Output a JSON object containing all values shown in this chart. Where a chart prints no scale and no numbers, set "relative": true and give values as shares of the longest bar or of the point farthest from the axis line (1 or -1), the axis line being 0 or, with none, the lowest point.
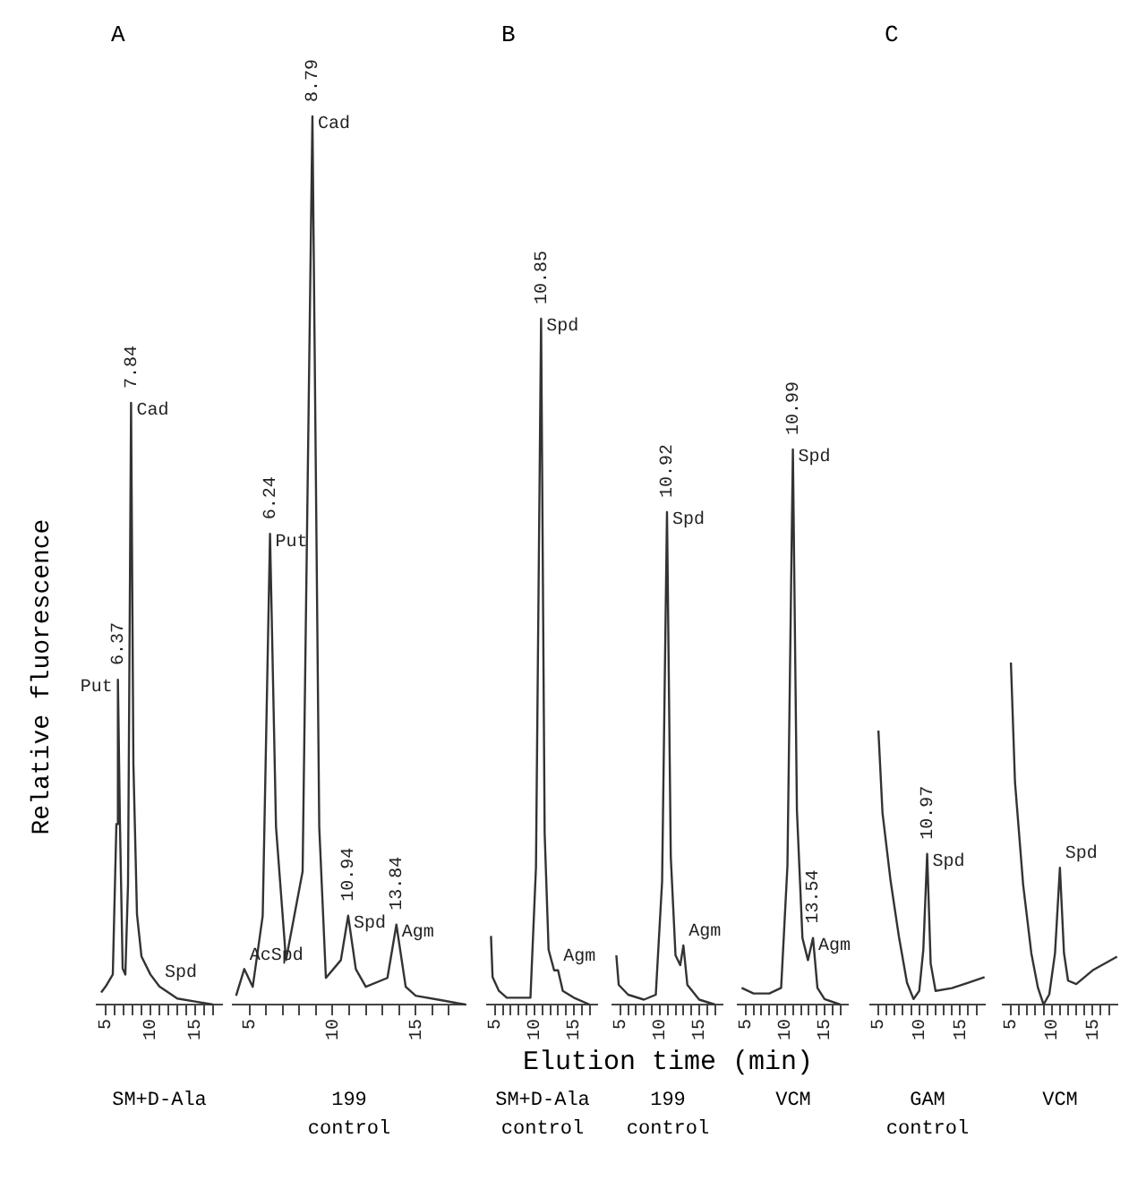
{
  "chart_data": [
    {
      "type": "line",
      "title": "A",
      "ylabel": "Relative fluorescence",
      "relative": true,
      "color": "#333333",
      "marker": "none",
      "xlim": [
        4,
        18
      ],
      "xticks": [
        5,
        {
          "value": 6,
          "label": null
        },
        {
          "value": 7,
          "label": null
        },
        {
          "value": 8,
          "label": null
        },
        {
          "value": 9,
          "label": null
        },
        10,
        {
          "value": 11,
          "label": null
        },
        {
          "value": 12,
          "label": null
        },
        {
          "value": 13,
          "label": null
        },
        {
          "value": 14,
          "label": null
        },
        15,
        {
          "value": 16,
          "label": null
        },
        {
          "value": 17,
          "label": null
        }
      ],
      "x": [
        4.5,
        5,
        5.8,
        6.2,
        6.37,
        6.6,
        6.9,
        7.2,
        7.5,
        7.84,
        8.1,
        8.5,
        9,
        10,
        11,
        13,
        15,
        17
      ],
      "values": [
        0.02,
        0.03,
        0.05,
        0.3,
        0.54,
        0.3,
        0.06,
        0.05,
        0.2,
        1,
        0.4,
        0.15,
        0.08,
        0.05,
        0.03,
        0.01,
        0.005,
        0
      ],
      "annotations": [
        {
          "text": "6.37",
          "x": 6.37,
          "y": 0.54
        },
        {
          "text": "Put",
          "x": 6.37,
          "y": 0.54
        },
        {
          "text": "7.84",
          "x": 7.84,
          "y": 1
        },
        {
          "text": "Cad",
          "x": 7.84,
          "y": 1
        },
        {
          "text": "Spd",
          "x": 11,
          "y": 0.03
        },
        "SM+D-Ala"
      ]
    },
    {
      "type": "line",
      "relative": true,
      "color": "#333333",
      "marker": "none",
      "xlim": [
        4,
        18
      ],
      "xticks": [
        5,
        {
          "value": 6,
          "label": null
        },
        {
          "value": 7,
          "label": null
        },
        {
          "value": 8,
          "label": null
        },
        {
          "value": 9,
          "label": null
        },
        10,
        {
          "value": 11,
          "label": null
        },
        {
          "value": 12,
          "label": null
        },
        {
          "value": 13,
          "label": null
        },
        {
          "value": 14,
          "label": null
        },
        15,
        {
          "value": 16,
          "label": null
        },
        {
          "value": 17,
          "label": null
        }
      ],
      "x": [
        4.2,
        4.69,
        5.2,
        5.8,
        6.24,
        6.6,
        7.2,
        8.2,
        8.79,
        9.2,
        9.6,
        10.5,
        10.94,
        11.4,
        12,
        13.3,
        13.84,
        14.4,
        15,
        16.5,
        18
      ],
      "values": [
        0.01,
        0.04,
        0.02,
        0.1,
        0.53,
        0.2,
        0.05,
        0.15,
        1,
        0.2,
        0.03,
        0.05,
        0.1,
        0.04,
        0.02,
        0.03,
        0.09,
        0.02,
        0.01,
        0.005,
        0
      ],
      "annotations": [
        {
          "text": "AcSpd",
          "x": 4.69,
          "y": 0.04
        },
        {
          "text": "6.24",
          "x": 6.24,
          "y": 0.53
        },
        {
          "text": "Put",
          "x": 6.24,
          "y": 0.53
        },
        {
          "text": "8.79",
          "x": 8.79,
          "y": 1
        },
        {
          "text": "Cad",
          "x": 8.79,
          "y": 1
        },
        {
          "text": "10.94",
          "x": 10.94,
          "y": 0.1
        },
        {
          "text": "Spd",
          "x": 10.94,
          "y": 0.1
        },
        {
          "text": "13.84",
          "x": 13.84,
          "y": 0.09
        },
        {
          "text": "Agm",
          "x": 13.84,
          "y": 0.09
        },
        "199",
        "control"
      ]
    },
    {
      "type": "line",
      "title": "B",
      "relative": true,
      "color": "#333333",
      "marker": "none",
      "xlim": [
        4,
        18
      ],
      "xticks": [
        5,
        {
          "value": 6,
          "label": null
        },
        {
          "value": 7,
          "label": null
        },
        {
          "value": 8,
          "label": null
        },
        {
          "value": 9,
          "label": null
        },
        10,
        {
          "value": 11,
          "label": null
        },
        {
          "value": 12,
          "label": null
        },
        {
          "value": 13,
          "label": null
        },
        {
          "value": 14,
          "label": null
        },
        15,
        {
          "value": 16,
          "label": null
        },
        {
          "value": 17,
          "label": null
        }
      ],
      "x": [
        4.5,
        4.7,
        5.5,
        6.5,
        8,
        9.5,
        10.2,
        10.85,
        11.3,
        11.8,
        12.5,
        13,
        13.6,
        15,
        17
      ],
      "values": [
        0.1,
        0.04,
        0.02,
        0.01,
        0.01,
        0.01,
        0.2,
        1,
        0.25,
        0.08,
        0.05,
        0.05,
        0.02,
        0.01,
        0
      ],
      "annotations": [
        {
          "text": "10.85",
          "x": 10.85,
          "y": 1
        },
        {
          "text": "Spd",
          "x": 10.85,
          "y": 1
        },
        {
          "text": "Agm",
          "x": 13,
          "y": 0.05
        },
        "SM+D-Ala",
        "control"
      ]
    },
    {
      "type": "line",
      "xlabel": "Elution time (min)",
      "relative": true,
      "color": "#333333",
      "marker": "none",
      "xlim": [
        4,
        18
      ],
      "xticks": [
        5,
        {
          "value": 6,
          "label": null
        },
        {
          "value": 7,
          "label": null
        },
        {
          "value": 8,
          "label": null
        },
        {
          "value": 9,
          "label": null
        },
        10,
        {
          "value": 11,
          "label": null
        },
        {
          "value": 12,
          "label": null
        },
        {
          "value": 13,
          "label": null
        },
        {
          "value": 14,
          "label": null
        },
        15,
        {
          "value": 16,
          "label": null
        },
        {
          "value": 17,
          "label": null
        }
      ],
      "x": [
        4.5,
        4.8,
        6,
        8,
        9.5,
        10.3,
        10.92,
        11.4,
        12,
        12.6,
        13,
        13.5,
        15,
        17
      ],
      "values": [
        0.1,
        0.04,
        0.02,
        0.01,
        0.02,
        0.25,
        1,
        0.3,
        0.1,
        0.08,
        0.12,
        0.04,
        0.01,
        0
      ],
      "annotations": [
        {
          "text": "10.92",
          "x": 10.92,
          "y": 1
        },
        {
          "text": "Spd",
          "x": 10.92,
          "y": 1
        },
        {
          "text": "Agm",
          "x": 13,
          "y": 0.12
        },
        "199",
        "control"
      ]
    },
    {
      "type": "line",
      "relative": true,
      "color": "#333333",
      "marker": "none",
      "xlim": [
        4,
        18
      ],
      "xticks": [
        5,
        {
          "value": 6,
          "label": null
        },
        {
          "value": 7,
          "label": null
        },
        {
          "value": 8,
          "label": null
        },
        {
          "value": 9,
          "label": null
        },
        10,
        {
          "value": 11,
          "label": null
        },
        {
          "value": 12,
          "label": null
        },
        {
          "value": 13,
          "label": null
        },
        {
          "value": 14,
          "label": null
        },
        15,
        {
          "value": 16,
          "label": null
        },
        {
          "value": 17,
          "label": null
        }
      ],
      "x": [
        4.5,
        6,
        8,
        9.5,
        10.3,
        10.99,
        11.5,
        12.2,
        12.9,
        13.54,
        14.1,
        15,
        17
      ],
      "values": [
        0.03,
        0.02,
        0.02,
        0.03,
        0.25,
        1,
        0.35,
        0.12,
        0.08,
        0.12,
        0.03,
        0.01,
        0
      ],
      "annotations": [
        {
          "text": "10.99",
          "x": 10.99,
          "y": 1
        },
        {
          "text": "Spd",
          "x": 10.99,
          "y": 1
        },
        {
          "text": "13.54",
          "x": 13.54,
          "y": 0.12
        },
        {
          "text": "Agm",
          "x": 13.54,
          "y": 0.12
        },
        "VCM"
      ]
    },
    {
      "type": "line",
      "title": "C",
      "relative": true,
      "color": "#333333",
      "marker": "none",
      "xlim": [
        4,
        18
      ],
      "xticks": [
        5,
        {
          "value": 6,
          "label": null
        },
        {
          "value": 7,
          "label": null
        },
        {
          "value": 8,
          "label": null
        },
        {
          "value": 9,
          "label": null
        },
        10,
        {
          "value": 11,
          "label": null
        },
        {
          "value": 12,
          "label": null
        },
        {
          "value": 13,
          "label": null
        },
        {
          "value": 14,
          "label": null
        },
        15,
        {
          "value": 16,
          "label": null
        },
        {
          "value": 17,
          "label": null
        }
      ],
      "x": [
        5,
        5.5,
        6.5,
        7.5,
        8.5,
        9.3,
        10,
        10.5,
        10.97,
        11.4,
        12,
        14,
        16,
        18
      ],
      "values": [
        1,
        0.7,
        0.45,
        0.25,
        0.08,
        0.02,
        0.05,
        0.2,
        0.55,
        0.15,
        0.05,
        0.06,
        0.08,
        0.1
      ],
      "annotations": [
        {
          "text": "10.97",
          "x": 10.97,
          "y": 0.55
        },
        {
          "text": "Spd",
          "x": 10.97,
          "y": 0.55
        },
        "GAM",
        "control"
      ]
    },
    {
      "type": "line",
      "relative": true,
      "color": "#333333",
      "marker": "none",
      "xlim": [
        4,
        18
      ],
      "xticks": [
        5,
        {
          "value": 6,
          "label": null
        },
        {
          "value": 7,
          "label": null
        },
        {
          "value": 8,
          "label": null
        },
        {
          "value": 9,
          "label": null
        },
        10,
        {
          "value": 11,
          "label": null
        },
        {
          "value": 12,
          "label": null
        },
        {
          "value": 13,
          "label": null
        },
        {
          "value": 14,
          "label": null
        },
        15,
        {
          "value": 16,
          "label": null
        },
        {
          "value": 17,
          "label": null
        }
      ],
      "x": [
        5,
        5.5,
        6.5,
        7.5,
        8.3,
        9,
        9.7,
        10.4,
        11,
        11.5,
        12,
        13,
        15,
        18
      ],
      "values": [
        1,
        0.65,
        0.35,
        0.15,
        0.05,
        0,
        0.03,
        0.15,
        0.4,
        0.15,
        0.07,
        0.06,
        0.1,
        0.14
      ],
      "annotations": [
        {
          "text": "Spd",
          "x": 11,
          "y": 0.4
        },
        "VCM"
      ]
    }
  ]
}
